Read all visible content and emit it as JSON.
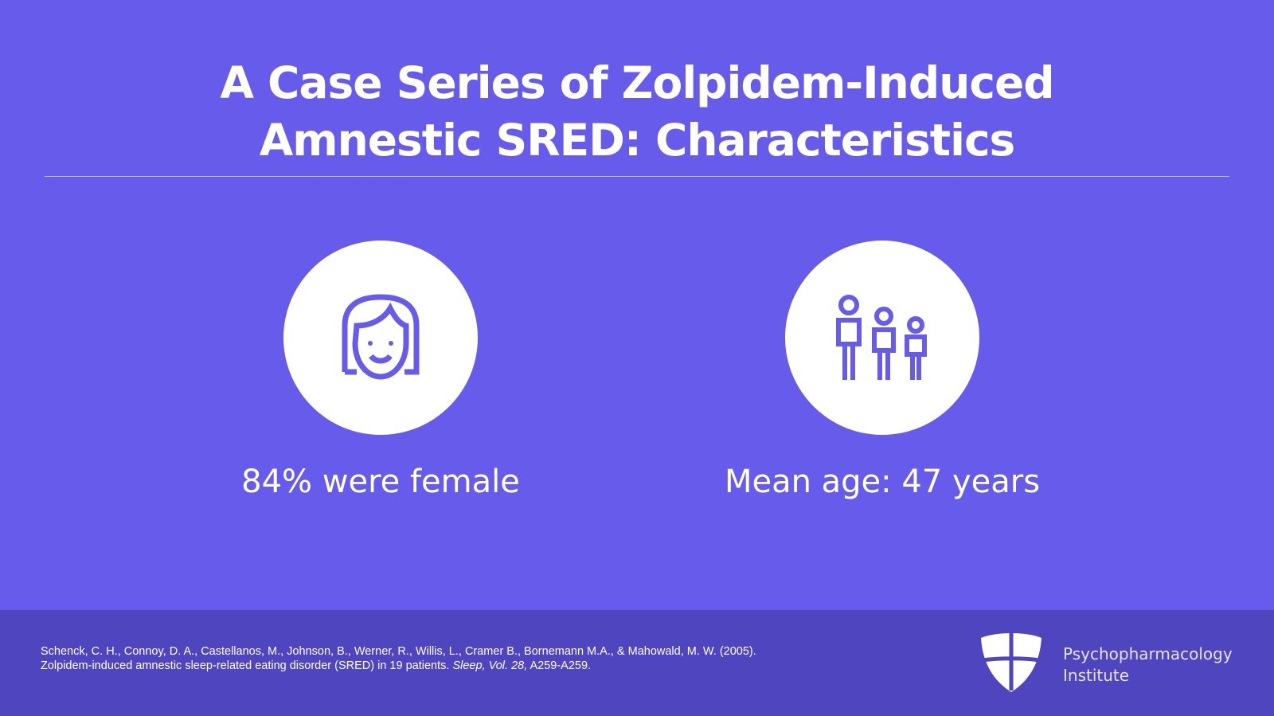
{
  "title": {
    "line1": "A Case Series of Zolpidem-Induced",
    "line2": "Amnestic SRED: Characteristics"
  },
  "stats": [
    {
      "icon": "woman-face-icon",
      "label": "84% were female"
    },
    {
      "icon": "family-icon",
      "label": "Mean age: 47 years"
    }
  ],
  "citation": {
    "line1": "Schenck, C. H., Connoy, D. A., Castellanos, M., Johnson, B., Werner, R., Willis, L., Cramer B., Bornemann M.A., & Mahowald, M. W. (2005).",
    "line2_pre": "Zolpidem-induced amnestic sleep-related eating disorder (SRED) in 19 patients. ",
    "journal": "Sleep",
    "vol": ", Vol. 28,",
    "pages": " A259-A259."
  },
  "brand": {
    "line1": "Psychopharmacology",
    "line2": "Institute"
  },
  "colors": {
    "background": "#665beb",
    "footer": "#4f45be",
    "icon": "#665beb"
  }
}
